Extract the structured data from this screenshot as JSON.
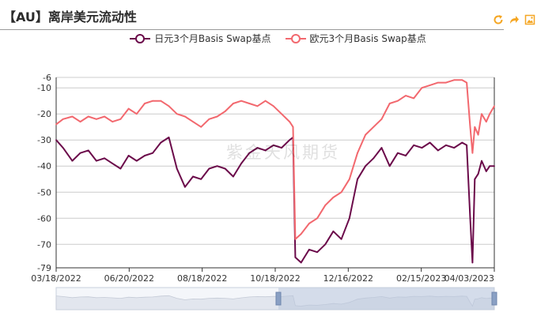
{
  "title": "【AU】离岸美元流动性",
  "watermark": "紫金天风期货",
  "toolbox": [
    "refresh-icon",
    "share-icon",
    "save-image-icon"
  ],
  "colors": {
    "series1": "#6b0a4a",
    "series2": "#f2686e",
    "axis": "#333333",
    "grid": "#cccccc",
    "accent": "#f5a623"
  },
  "chart_data": {
    "type": "line",
    "title": "【AU】离岸美元流动性",
    "ylim": [
      -79,
      -6
    ],
    "yticks": [
      -6,
      -10,
      -20,
      -30,
      -40,
      -50,
      -60,
      -70,
      -79
    ],
    "xticks": [
      "03/18/2022",
      "06/20/2022",
      "08/18/2022",
      "10/18/2022",
      "12/16/2022",
      "02/15/2023",
      "04/03/2023"
    ],
    "grid": true,
    "legend_position": "top-center",
    "x_start": "2022-03-18",
    "x_end": "2023-04-03",
    "series": [
      {
        "name": "日元3个月Basis Swap基点",
        "color": "#6b0a4a",
        "points": [
          [
            "2022-03-18",
            -30
          ],
          [
            "2022-03-24",
            -33
          ],
          [
            "2022-04-01",
            -38
          ],
          [
            "2022-04-08",
            -35
          ],
          [
            "2022-04-15",
            -34
          ],
          [
            "2022-04-22",
            -38
          ],
          [
            "2022-04-29",
            -37
          ],
          [
            "2022-05-06",
            -39
          ],
          [
            "2022-05-13",
            -41
          ],
          [
            "2022-05-20",
            -36
          ],
          [
            "2022-05-27",
            -38
          ],
          [
            "2022-06-03",
            -36
          ],
          [
            "2022-06-10",
            -35
          ],
          [
            "2022-06-17",
            -31
          ],
          [
            "2022-06-24",
            -29
          ],
          [
            "2022-07-01",
            -41
          ],
          [
            "2022-07-08",
            -48
          ],
          [
            "2022-07-15",
            -44
          ],
          [
            "2022-07-22",
            -45
          ],
          [
            "2022-07-29",
            -41
          ],
          [
            "2022-08-05",
            -40
          ],
          [
            "2022-08-12",
            -41
          ],
          [
            "2022-08-19",
            -44
          ],
          [
            "2022-08-26",
            -39
          ],
          [
            "2022-09-02",
            -35
          ],
          [
            "2022-09-09",
            -33
          ],
          [
            "2022-09-16",
            -34
          ],
          [
            "2022-09-23",
            -32
          ],
          [
            "2022-09-30",
            -33
          ],
          [
            "2022-10-07",
            -30
          ],
          [
            "2022-10-10",
            -29
          ],
          [
            "2022-10-12",
            -75
          ],
          [
            "2022-10-17",
            -77
          ],
          [
            "2022-10-24",
            -72
          ],
          [
            "2022-10-31",
            -73
          ],
          [
            "2022-11-07",
            -70
          ],
          [
            "2022-11-14",
            -65
          ],
          [
            "2022-11-21",
            -68
          ],
          [
            "2022-11-28",
            -60
          ],
          [
            "2022-12-05",
            -45
          ],
          [
            "2022-12-12",
            -40
          ],
          [
            "2022-12-19",
            -37
          ],
          [
            "2022-12-26",
            -33
          ],
          [
            "2023-01-02",
            -40
          ],
          [
            "2023-01-09",
            -35
          ],
          [
            "2023-01-16",
            -36
          ],
          [
            "2023-01-23",
            -32
          ],
          [
            "2023-01-30",
            -33
          ],
          [
            "2023-02-06",
            -31
          ],
          [
            "2023-02-13",
            -34
          ],
          [
            "2023-02-20",
            -32
          ],
          [
            "2023-02-27",
            -33
          ],
          [
            "2023-03-06",
            -31
          ],
          [
            "2023-03-10",
            -32
          ],
          [
            "2023-03-13",
            -60
          ],
          [
            "2023-03-15",
            -77
          ],
          [
            "2023-03-17",
            -45
          ],
          [
            "2023-03-20",
            -43
          ],
          [
            "2023-03-23",
            -38
          ],
          [
            "2023-03-27",
            -42
          ],
          [
            "2023-03-30",
            -40
          ],
          [
            "2023-04-03",
            -40
          ]
        ]
      },
      {
        "name": "欧元3个月Basis Swap基点",
        "color": "#f2686e",
        "points": [
          [
            "2022-03-18",
            -24
          ],
          [
            "2022-03-24",
            -22
          ],
          [
            "2022-04-01",
            -21
          ],
          [
            "2022-04-08",
            -23
          ],
          [
            "2022-04-15",
            -21
          ],
          [
            "2022-04-22",
            -22
          ],
          [
            "2022-04-29",
            -21
          ],
          [
            "2022-05-06",
            -23
          ],
          [
            "2022-05-13",
            -22
          ],
          [
            "2022-05-20",
            -18
          ],
          [
            "2022-05-27",
            -20
          ],
          [
            "2022-06-03",
            -16
          ],
          [
            "2022-06-10",
            -15
          ],
          [
            "2022-06-17",
            -15
          ],
          [
            "2022-06-24",
            -17
          ],
          [
            "2022-07-01",
            -20
          ],
          [
            "2022-07-08",
            -21
          ],
          [
            "2022-07-15",
            -23
          ],
          [
            "2022-07-22",
            -25
          ],
          [
            "2022-07-29",
            -22
          ],
          [
            "2022-08-05",
            -21
          ],
          [
            "2022-08-12",
            -19
          ],
          [
            "2022-08-19",
            -16
          ],
          [
            "2022-08-26",
            -15
          ],
          [
            "2022-09-02",
            -16
          ],
          [
            "2022-09-09",
            -17
          ],
          [
            "2022-09-16",
            -15
          ],
          [
            "2022-09-23",
            -17
          ],
          [
            "2022-09-30",
            -20
          ],
          [
            "2022-10-07",
            -23
          ],
          [
            "2022-10-10",
            -25
          ],
          [
            "2022-10-12",
            -68
          ],
          [
            "2022-10-17",
            -66
          ],
          [
            "2022-10-24",
            -62
          ],
          [
            "2022-10-31",
            -60
          ],
          [
            "2022-11-07",
            -55
          ],
          [
            "2022-11-14",
            -52
          ],
          [
            "2022-11-21",
            -50
          ],
          [
            "2022-11-28",
            -45
          ],
          [
            "2022-12-05",
            -35
          ],
          [
            "2022-12-12",
            -28
          ],
          [
            "2022-12-19",
            -25
          ],
          [
            "2022-12-26",
            -22
          ],
          [
            "2023-01-02",
            -16
          ],
          [
            "2023-01-09",
            -15
          ],
          [
            "2023-01-16",
            -13
          ],
          [
            "2023-01-23",
            -14
          ],
          [
            "2023-01-30",
            -10
          ],
          [
            "2023-02-06",
            -9
          ],
          [
            "2023-02-13",
            -8
          ],
          [
            "2023-02-20",
            -8
          ],
          [
            "2023-02-27",
            -7
          ],
          [
            "2023-03-06",
            -7
          ],
          [
            "2023-03-10",
            -8
          ],
          [
            "2023-03-13",
            -25
          ],
          [
            "2023-03-15",
            -35
          ],
          [
            "2023-03-17",
            -25
          ],
          [
            "2023-03-20",
            -28
          ],
          [
            "2023-03-23",
            -20
          ],
          [
            "2023-03-27",
            -23
          ],
          [
            "2023-03-30",
            -20
          ],
          [
            "2023-04-03",
            -17
          ]
        ]
      }
    ]
  }
}
